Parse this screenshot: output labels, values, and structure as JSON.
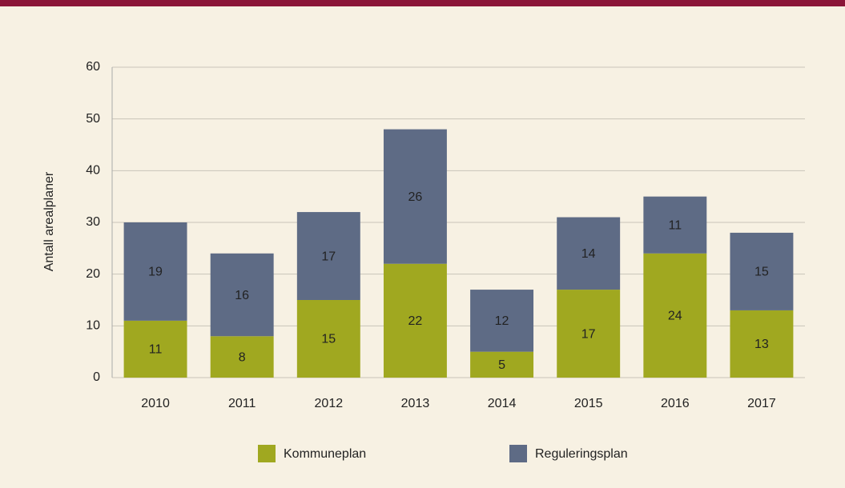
{
  "chart_data": {
    "type": "stacked_bar",
    "y_label": "Antall arealplaner",
    "categories": [
      "2010",
      "2011",
      "2012",
      "2013",
      "2014",
      "2015",
      "2016",
      "2017"
    ],
    "series": [
      {
        "name": "Kommuneplan",
        "color": "#a0a820",
        "values": [
          11,
          8,
          15,
          22,
          5,
          17,
          24,
          13
        ]
      },
      {
        "name": "Reguleringsplan",
        "color": "#5e6b85",
        "values": [
          19,
          16,
          17,
          26,
          12,
          14,
          11,
          15
        ]
      }
    ],
    "ylim": [
      0,
      60
    ],
    "yticks": [
      0,
      10,
      20,
      30,
      40,
      50,
      60
    ],
    "grid": true
  }
}
